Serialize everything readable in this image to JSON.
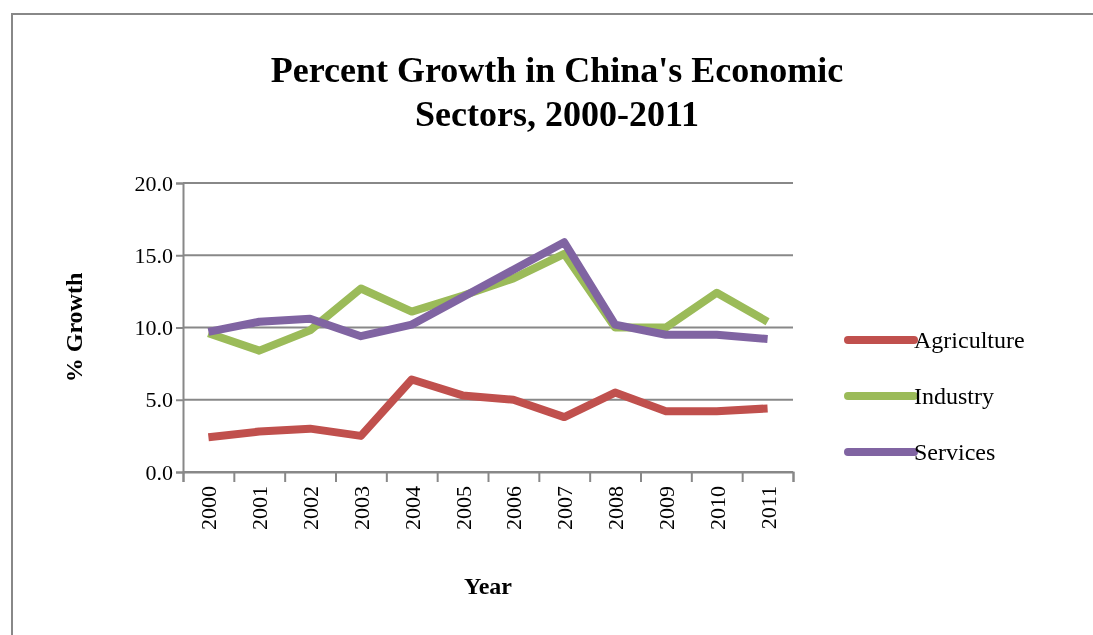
{
  "chart_data": {
    "type": "line",
    "title": "Percent Growth in China's Economic Sectors, 2000-2011",
    "xlabel": "Year",
    "ylabel": "% Growth",
    "categories": [
      "2000",
      "2001",
      "2002",
      "2003",
      "2004",
      "2005",
      "2006",
      "2007",
      "2008",
      "2009",
      "2010",
      "2011"
    ],
    "series": [
      {
        "name": "Agriculture",
        "color": "#c0504d",
        "values": [
          2.4,
          2.8,
          3.0,
          2.5,
          6.4,
          5.3,
          5.0,
          3.8,
          5.5,
          4.2,
          4.2,
          4.4
        ]
      },
      {
        "name": "Industry",
        "color": "#9bbb59",
        "values": [
          9.6,
          8.4,
          9.8,
          12.7,
          11.1,
          12.2,
          13.4,
          15.1,
          10.0,
          10.0,
          12.4,
          10.4
        ]
      },
      {
        "name": "Services",
        "color": "#8064a2",
        "values": [
          9.7,
          10.4,
          10.6,
          9.4,
          10.2,
          12.1,
          14.0,
          15.9,
          10.2,
          9.5,
          9.5,
          9.2
        ]
      }
    ],
    "ylim": [
      0,
      20
    ],
    "yticks": [
      {
        "value": 0,
        "label": "0.0"
      },
      {
        "value": 5,
        "label": "5.0"
      },
      {
        "value": 10,
        "label": "10.0"
      },
      {
        "value": 15,
        "label": "15.0"
      },
      {
        "value": 20,
        "label": "20.0"
      }
    ],
    "grid": "y",
    "legend": "right",
    "marker": "none",
    "line_style": "solid"
  }
}
